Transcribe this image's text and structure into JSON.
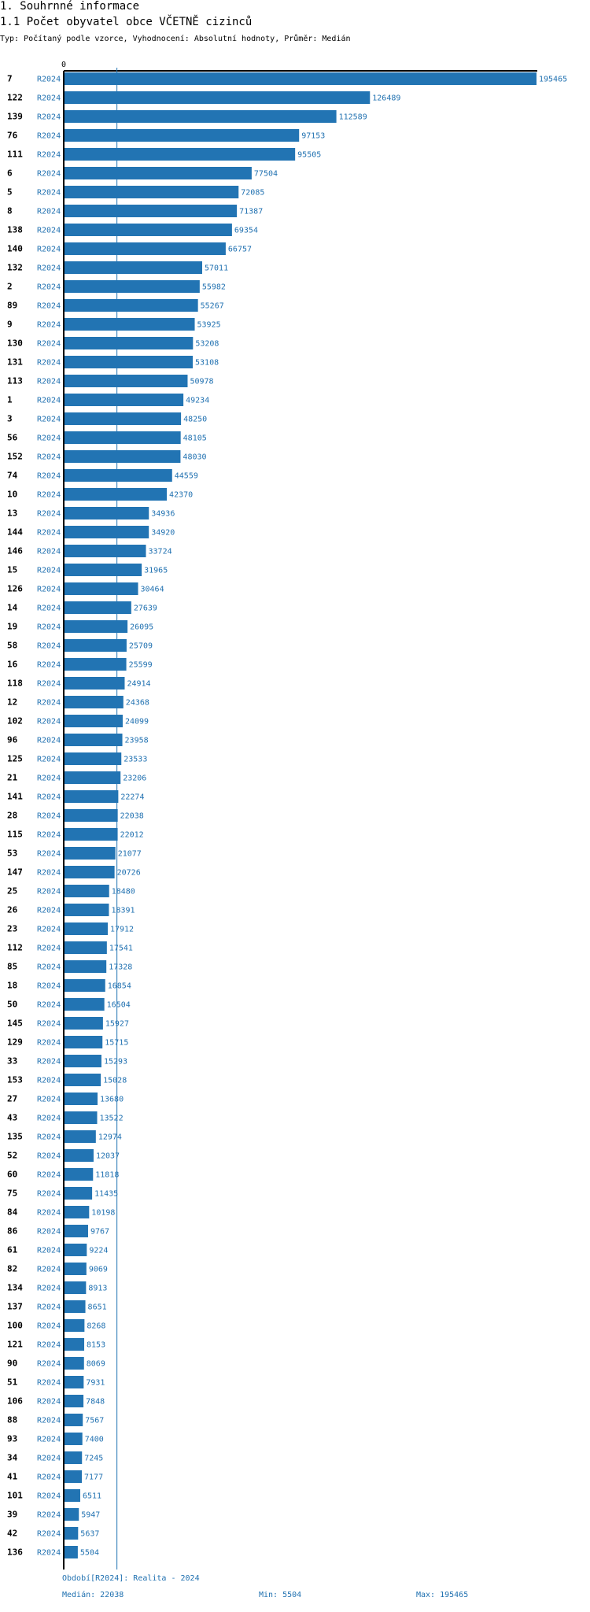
{
  "header": {
    "section_title": "1. Souhrnné informace",
    "chart_title": "1.1 Počet obyvatel obce VČETNĚ cizinců",
    "subtitle": "Typ: Počítaný podle vzorce, Vyhodnocení: Absolutní hodnoty, Průměr: Medián"
  },
  "colors": {
    "bar": "#2274b3",
    "label": "#1f70b0",
    "axis": "#000000",
    "median_line": "#2274b3"
  },
  "chart_data": {
    "type": "bar",
    "orientation": "horizontal",
    "series_label": "R2024",
    "axis_zero_label": "0",
    "xlim": [
      0,
      195465
    ],
    "median": 22038,
    "categories": [
      "7",
      "122",
      "139",
      "76",
      "111",
      "6",
      "5",
      "8",
      "138",
      "140",
      "132",
      "2",
      "89",
      "9",
      "130",
      "131",
      "113",
      "1",
      "3",
      "56",
      "152",
      "74",
      "10",
      "13",
      "144",
      "146",
      "15",
      "126",
      "14",
      "19",
      "58",
      "16",
      "118",
      "12",
      "102",
      "96",
      "125",
      "21",
      "141",
      "28",
      "115",
      "53",
      "147",
      "25",
      "26",
      "23",
      "112",
      "85",
      "18",
      "50",
      "145",
      "129",
      "33",
      "153",
      "27",
      "43",
      "135",
      "52",
      "60",
      "75",
      "84",
      "86",
      "61",
      "82",
      "134",
      "137",
      "100",
      "121",
      "90",
      "51",
      "106",
      "88",
      "93",
      "34",
      "41",
      "101",
      "39",
      "42",
      "136"
    ],
    "values": [
      195465,
      126489,
      112589,
      97153,
      95505,
      77504,
      72085,
      71387,
      69354,
      66757,
      57011,
      55982,
      55267,
      53925,
      53208,
      53108,
      50978,
      49234,
      48250,
      48105,
      48030,
      44559,
      42370,
      34936,
      34920,
      33724,
      31965,
      30464,
      27639,
      26095,
      25709,
      25599,
      24914,
      24368,
      24099,
      23958,
      23533,
      23206,
      22274,
      22038,
      22012,
      21077,
      20726,
      18480,
      18391,
      17912,
      17541,
      17328,
      16854,
      16504,
      15927,
      15715,
      15293,
      15028,
      13680,
      13522,
      12974,
      12037,
      11818,
      11435,
      10198,
      9767,
      9224,
      9069,
      8913,
      8651,
      8268,
      8153,
      8069,
      7931,
      7848,
      7567,
      7400,
      7245,
      7177,
      6511,
      5947,
      5637,
      5504
    ]
  },
  "footer": {
    "period": "Období[R2024]: Realita - 2024",
    "median": "Medián: 22038",
    "min": "Min: 5504",
    "max": "Max: 195465"
  }
}
